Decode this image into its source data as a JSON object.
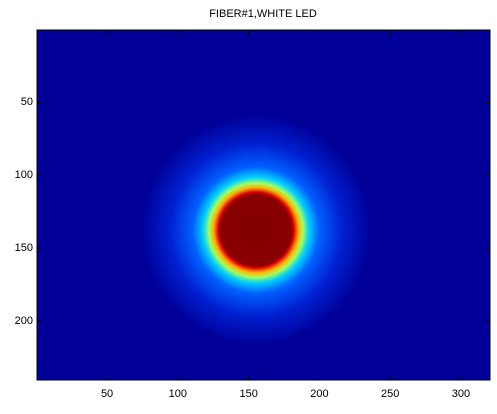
{
  "chart_data": {
    "type": "image",
    "title": "FIBER#1,WHITE LED",
    "xlim": [
      0.5,
      320.5
    ],
    "ylim": [
      0.5,
      240.5
    ],
    "xticks": [
      50,
      100,
      150,
      200,
      250,
      300
    ],
    "yticks": [
      50,
      100,
      150,
      200
    ],
    "y_reversed": true,
    "grid": false
  }
}
